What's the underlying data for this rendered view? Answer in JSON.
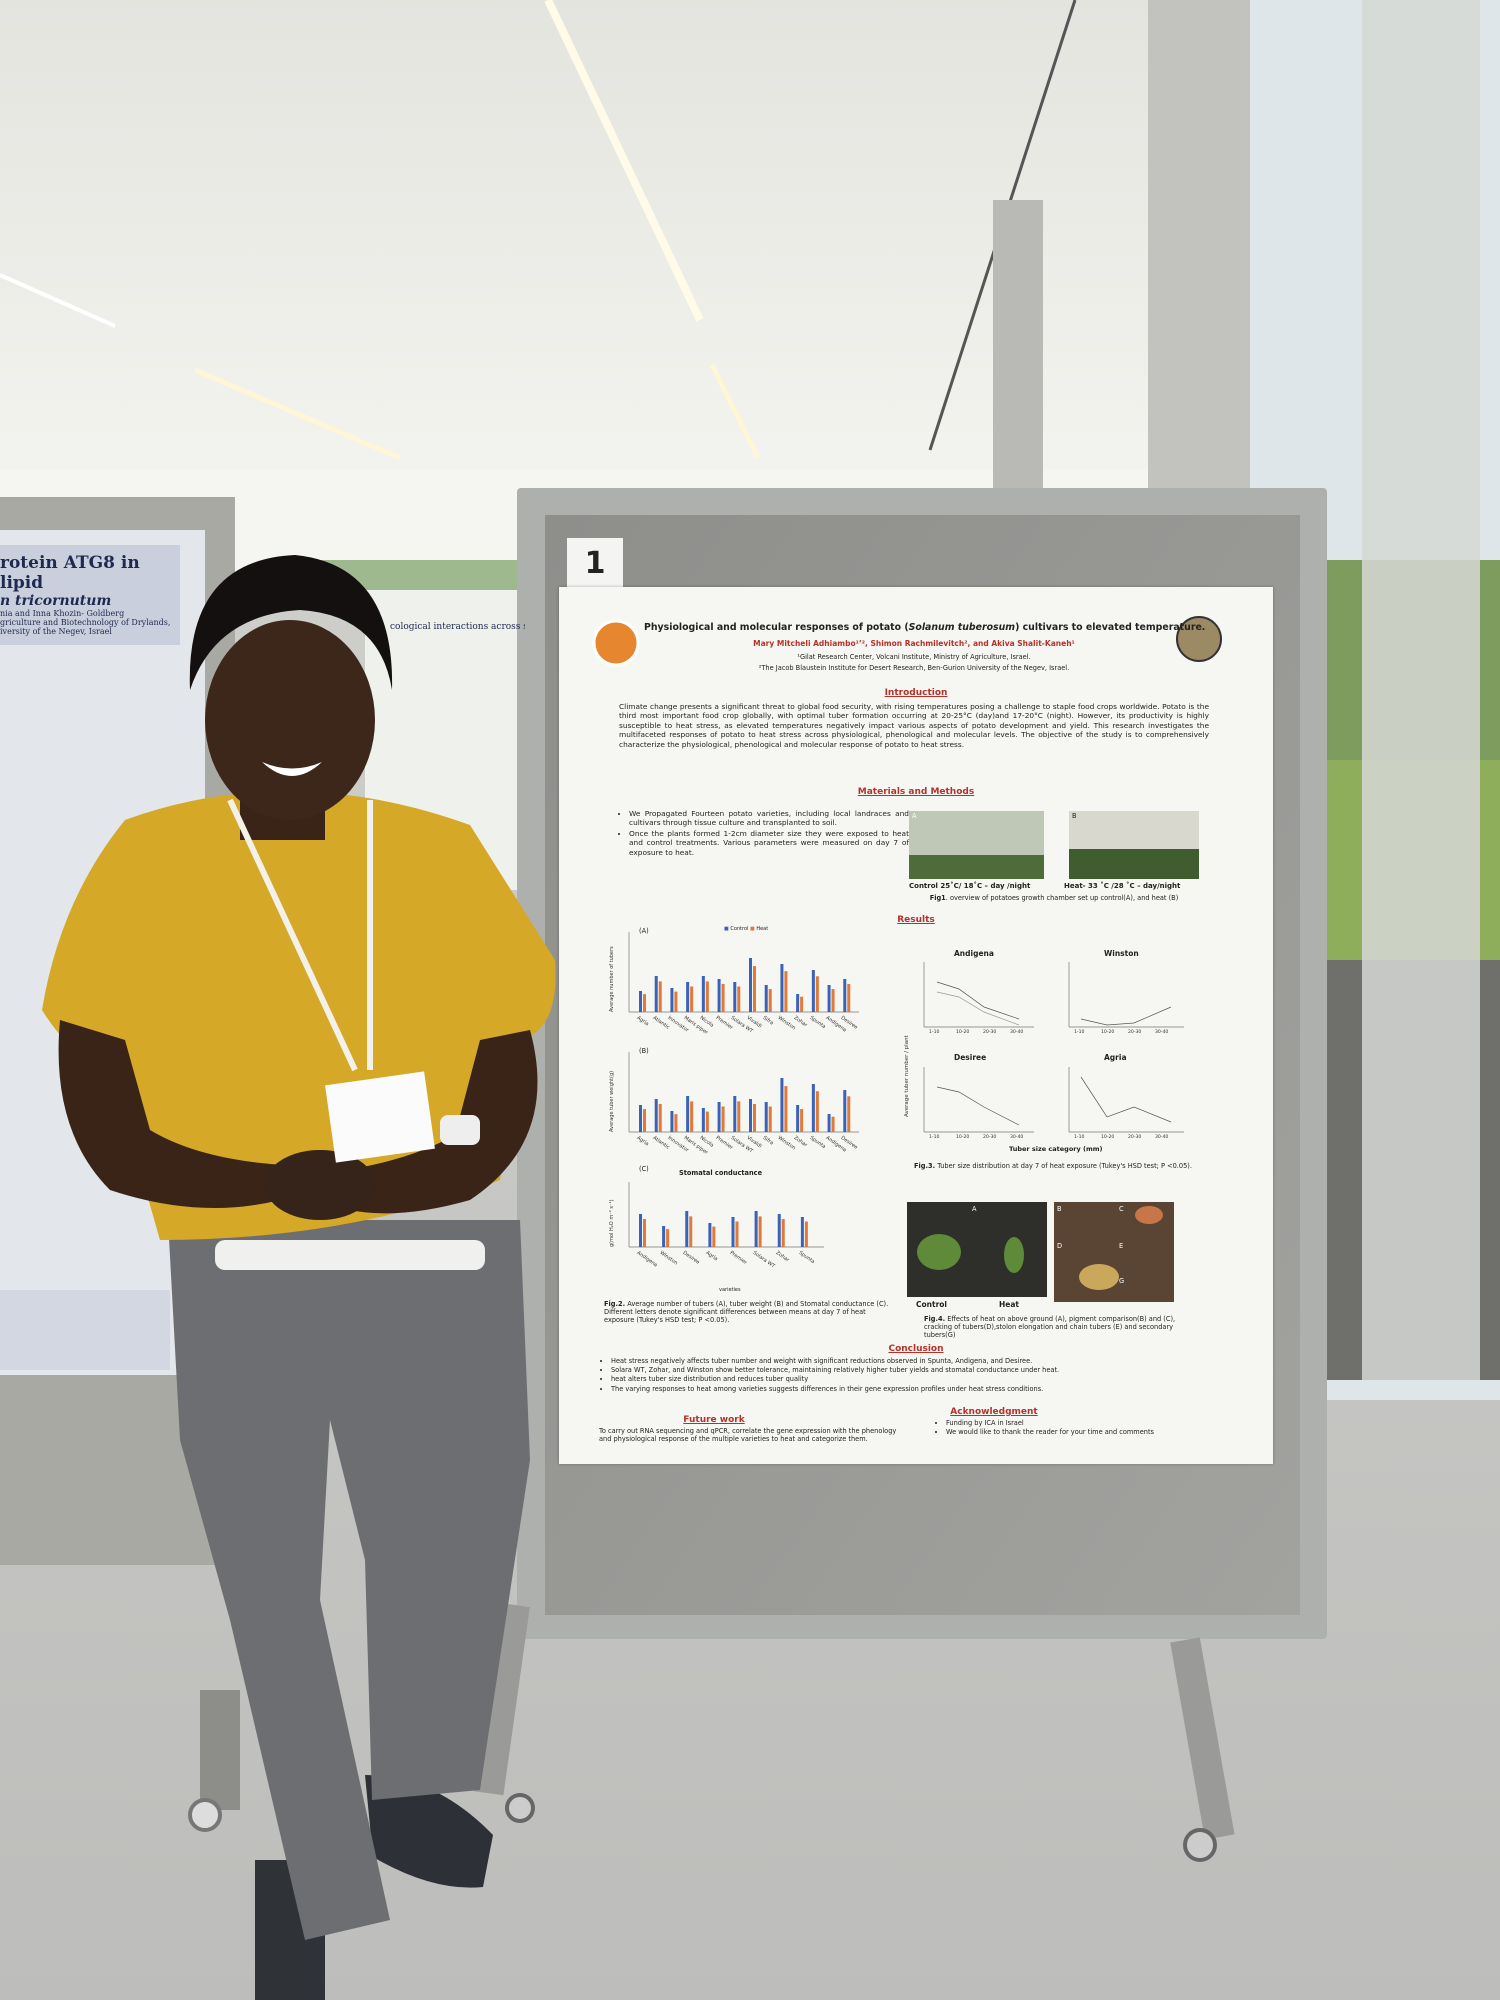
{
  "board_number": "1",
  "poster": {
    "title_before": "Physiological and molecular responses of potato (",
    "title_species": "Solanum tuberosum",
    "title_after": ") cultivars to elevated temperature.",
    "authors": "Mary Mitcheli Adhiambo¹ʼ², Shimon Rachmilevitch², and Akiva Shalit-Kaneh¹",
    "affiliations": [
      "¹Gilat Research Center, Volcani Institute, Ministry of Agriculture, Israel.",
      "²The Jacob Blaustein Institute for Desert Research, Ben-Gurion University of the Negev, Israel."
    ],
    "introduction": {
      "heading": "Introduction",
      "text": "Climate change presents a significant threat to global food security, with rising temperatures posing a challenge to staple food crops worldwide. Potato is the third most important food crop globally, with optimal tuber formation occurring at 20-25°C (day)and 17-20°C (night). However, its productivity is highly susceptible to heat stress, as elevated temperatures negatively impact various aspects of potato development and yield. This research investigates the multifaceted responses of potato to heat stress across physiological, phenological and molecular levels. The objective of the study is to comprehensively characterize the physiological, phenological and molecular response of potato to heat stress."
    },
    "methods": {
      "heading": "Materials and Methods",
      "bullets": [
        "We Propagated Fourteen potato varieties, including local landraces and cultivars through tissue culture and transplanted to soil.",
        "Once the plants formed 1-2cm diameter size they were exposed to heat and control treatments. Various parameters were measured on day 7 of exposure to heat."
      ],
      "photo_letters": [
        "A",
        "B"
      ],
      "photo_labels": [
        "Control 25˚C/ 18˚C – day /night",
        "Heat- 33 ˚C /28 ˚C – day/night"
      ],
      "caption_tag": "Fig1",
      "caption": ". overview of potatoes growth chamber set up control(A), and heat (B)"
    },
    "results": {
      "heading": "Results",
      "legend": [
        "Control",
        "Heat"
      ],
      "fig2_panels": [
        "(A)",
        "(B)",
        "(C)"
      ],
      "fig2_y_labels": [
        "Average number of tubers",
        "Average tuber weight(g)",
        "g(mol H₂O m⁻² s⁻¹)"
      ],
      "fig2_c_title": "Stomatal conductance",
      "fig2_varieties": [
        "Agria",
        "Atlantic",
        "Innovator",
        "Maris piper",
        "Nicola",
        "Premier",
        "Solara WT",
        "Vivaldi",
        "Sifra",
        "Winston",
        "Zohar",
        "Spunta",
        "Andigena",
        "Desiree"
      ],
      "fig2_c_varieties": [
        "Andigena",
        "Winston",
        "Desiree",
        "Agria",
        "Premier",
        "Solara WT",
        "Zohar",
        "Spunta"
      ],
      "fig2_x_label": "varieties",
      "fig2_tag": "Fig.2.",
      "fig2_caption": " Average number of tubers (A), tuber weight (B) and Stomatal conductance (C). Different letters denote significant differences between means at day 7 of heat exposure (Tukey's HSD test; P <0.05).",
      "fig3_panels": [
        "Andigena",
        "Winston",
        "Desiree",
        "Agria"
      ],
      "fig3_categories": [
        "1-10",
        "10-20",
        "20-30",
        "30-40"
      ],
      "fig3_y_label": "Average tuber number / plant",
      "fig3_x_label": "Tuber size category (mm)",
      "fig3_tag": "Fig.3.",
      "fig3_caption": " Tuber size distribution at day 7 of heat exposure (Tukey's HSD test; P <0.05).",
      "fig4_letters": [
        "A",
        "B",
        "C",
        "D",
        "E",
        "G"
      ],
      "fig4_labels": [
        "Control",
        "Heat"
      ],
      "fig4_tag": "Fig.4.",
      "fig4_caption": " Effects of heat on above ground (A), pigment comparison(B) and (C), cracking of tubers(D),stolon elongation and chain tubers (E) and secondary tubers(G)"
    },
    "conclusion": {
      "heading": "Conclusion",
      "bullets": [
        "Heat stress negatively affects tuber number and weight with significant reductions observed in Spunta, Andigena, and Desiree.",
        "Solara WT, Zohar, and Winston show better tolerance, maintaining relatively higher tuber yields and stomatal conductance under heat.",
        "heat alters tuber size distribution and reduces tuber quality",
        "The varying responses to heat among varieties suggests differences in their gene expression profiles under heat stress conditions."
      ]
    },
    "future_work": {
      "heading": "Future work",
      "text": "To carry out RNA sequencing and qPCR, correlate the gene expression with the phenology and physiological response of the multiple varieties to heat and categorize them."
    },
    "acknowledgment": {
      "heading": "Acknowledgment",
      "bullets": [
        "Funding by ICA in Israel",
        "We would like to thank the reader for your time and comments"
      ]
    }
  },
  "left_poster": {
    "title": "rotein ATG8 in lipid",
    "subtitle": "n tricornutum",
    "authors": "nia and Inna Khozin- Goldberg",
    "affiliation": [
      "griculture and Biotechnology of Drylands,",
      "iversity of the Negev, Israel"
    ]
  },
  "back_poster": {
    "title": "cological interactions across sp"
  }
}
